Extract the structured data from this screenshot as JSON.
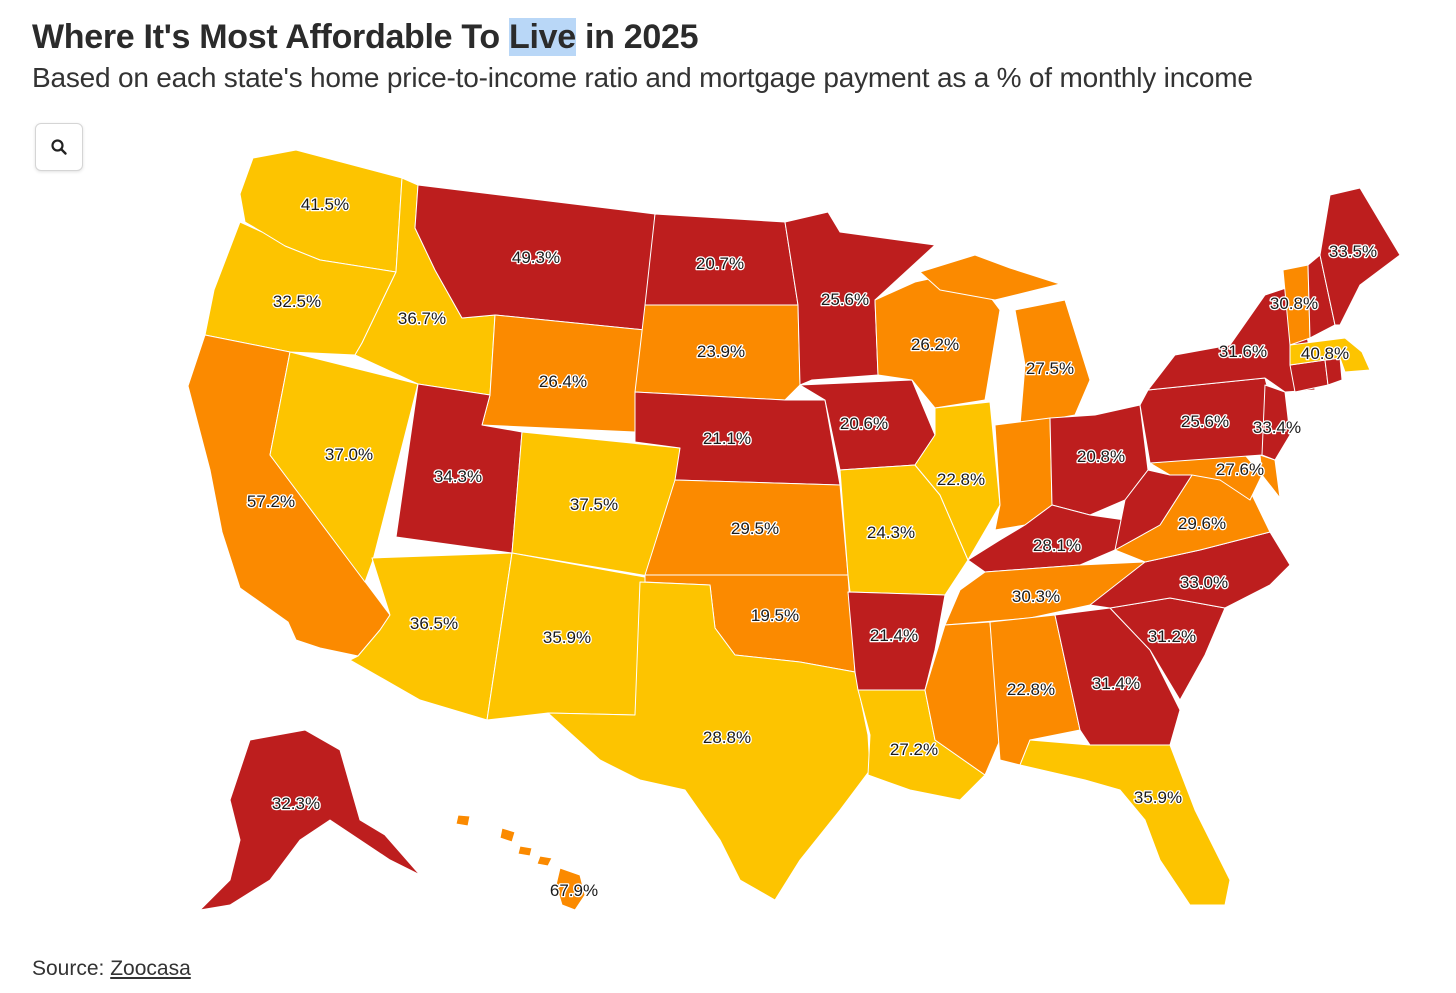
{
  "header": {
    "title_before": "Where It's Most Affordable To ",
    "title_highlight": "Live",
    "title_after": " in 2025",
    "subtitle": "Based on each state's home price-to-income ratio and mortgage payment as a % of monthly income"
  },
  "controls": {
    "zoom_icon": "search-icon"
  },
  "footer": {
    "source_prefix": "Source: ",
    "source_link": "Zoocasa"
  },
  "colors": {
    "dark_red": "#bd1e1e",
    "orange": "#fb8a00",
    "yellow": "#fdc400",
    "border": "#ffffff"
  },
  "map_data": {
    "metric": "mortgage payment as a % of monthly income",
    "states": [
      {
        "state": "WA",
        "value": "41.5%",
        "color": "yellow"
      },
      {
        "state": "OR",
        "value": "32.5%",
        "color": "yellow"
      },
      {
        "state": "CA",
        "value": "57.2%",
        "color": "orange"
      },
      {
        "state": "NV",
        "value": "37.0%",
        "color": "yellow"
      },
      {
        "state": "ID",
        "value": "36.7%",
        "color": "yellow"
      },
      {
        "state": "MT",
        "value": "49.3%",
        "color": "dark_red"
      },
      {
        "state": "WY",
        "value": "26.4%",
        "color": "orange"
      },
      {
        "state": "UT",
        "value": "34.3%",
        "color": "dark_red"
      },
      {
        "state": "AZ",
        "value": "36.5%",
        "color": "yellow"
      },
      {
        "state": "CO",
        "value": "37.5%",
        "color": "yellow"
      },
      {
        "state": "NM",
        "value": "35.9%",
        "color": "yellow"
      },
      {
        "state": "ND",
        "value": "20.7%",
        "color": "dark_red"
      },
      {
        "state": "SD",
        "value": "23.9%",
        "color": "orange"
      },
      {
        "state": "NE",
        "value": "21.1%",
        "color": "dark_red"
      },
      {
        "state": "KS",
        "value": "29.5%",
        "color": "orange"
      },
      {
        "state": "OK",
        "value": "19.5%",
        "color": "orange"
      },
      {
        "state": "TX",
        "value": "28.8%",
        "color": "yellow"
      },
      {
        "state": "MN",
        "value": "25.6%",
        "color": "dark_red"
      },
      {
        "state": "IA",
        "value": "20.6%",
        "color": "dark_red"
      },
      {
        "state": "MO",
        "value": "24.3%",
        "color": "yellow"
      },
      {
        "state": "AR",
        "value": "21.4%",
        "color": "dark_red"
      },
      {
        "state": "LA",
        "value": "27.2%",
        "color": "yellow"
      },
      {
        "state": "WI",
        "value": "26.2%",
        "color": "orange"
      },
      {
        "state": "IL",
        "value": "22.8%",
        "color": "yellow"
      },
      {
        "state": "MI",
        "value": "27.5%",
        "color": "orange"
      },
      {
        "state": "IN",
        "value": "",
        "color": "orange"
      },
      {
        "state": "OH",
        "value": "20.8%",
        "color": "dark_red"
      },
      {
        "state": "KY",
        "value": "28.1%",
        "color": "dark_red"
      },
      {
        "state": "TN",
        "value": "30.3%",
        "color": "orange"
      },
      {
        "state": "MS",
        "value": "",
        "color": "orange"
      },
      {
        "state": "AL",
        "value": "22.8%",
        "color": "orange"
      },
      {
        "state": "GA",
        "value": "31.4%",
        "color": "dark_red"
      },
      {
        "state": "FL",
        "value": "35.9%",
        "color": "yellow"
      },
      {
        "state": "SC",
        "value": "31.2%",
        "color": "dark_red"
      },
      {
        "state": "NC",
        "value": "33.0%",
        "color": "dark_red"
      },
      {
        "state": "VA",
        "value": "29.6%",
        "color": "orange"
      },
      {
        "state": "WV",
        "value": "",
        "color": "dark_red"
      },
      {
        "state": "MD",
        "value": "27.6%",
        "color": "orange"
      },
      {
        "state": "DE",
        "value": "",
        "color": "orange"
      },
      {
        "state": "PA",
        "value": "25.6%",
        "color": "dark_red"
      },
      {
        "state": "NJ",
        "value": "33.4%",
        "color": "dark_red"
      },
      {
        "state": "NY",
        "value": "31.6%",
        "color": "dark_red"
      },
      {
        "state": "CT",
        "value": "",
        "color": "dark_red"
      },
      {
        "state": "RI",
        "value": "",
        "color": "dark_red"
      },
      {
        "state": "MA",
        "value": "40.8%",
        "color": "yellow"
      },
      {
        "state": "VT",
        "value": "30.8%",
        "color": "orange"
      },
      {
        "state": "NH",
        "value": "",
        "color": "dark_red"
      },
      {
        "state": "ME",
        "value": "33.5%",
        "color": "dark_red"
      },
      {
        "state": "AK",
        "value": "32.3%",
        "color": "dark_red"
      },
      {
        "state": "HI",
        "value": "67.9%",
        "color": "orange"
      }
    ]
  }
}
